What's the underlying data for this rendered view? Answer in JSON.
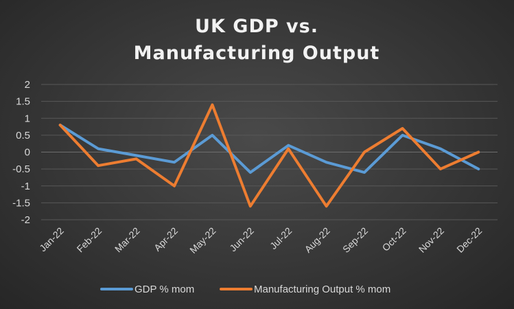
{
  "chart_data": {
    "type": "line",
    "title_lines": [
      "UK GDP vs.",
      "Manufacturing Output"
    ],
    "categories": [
      "Jan-22",
      "Feb-22",
      "Mar-22",
      "Apr-22",
      "May-22",
      "Jun-22",
      "Jul-22",
      "Aug-22",
      "Sep-22",
      "Oct-22",
      "Nov-22",
      "Dec-22"
    ],
    "ylim": [
      -2,
      2
    ],
    "yticks": [
      "2",
      "1.5",
      "1",
      "0.5",
      "0",
      "-0.5",
      "-1",
      "-1.5",
      "-2"
    ],
    "grid": true,
    "legend_position": "bottom",
    "series": [
      {
        "name": "GDP % mom",
        "color": "#5b9bd5",
        "values": [
          0.8,
          0.1,
          -0.1,
          -0.3,
          0.5,
          -0.6,
          0.2,
          -0.3,
          -0.6,
          0.5,
          0.1,
          -0.5
        ]
      },
      {
        "name": "Manufacturing Output % mom",
        "color": "#ed7d31",
        "values": [
          0.8,
          -0.4,
          -0.2,
          -1.0,
          1.4,
          -1.6,
          0.1,
          -1.6,
          0.0,
          0.7,
          -0.5,
          0.0
        ]
      }
    ]
  }
}
